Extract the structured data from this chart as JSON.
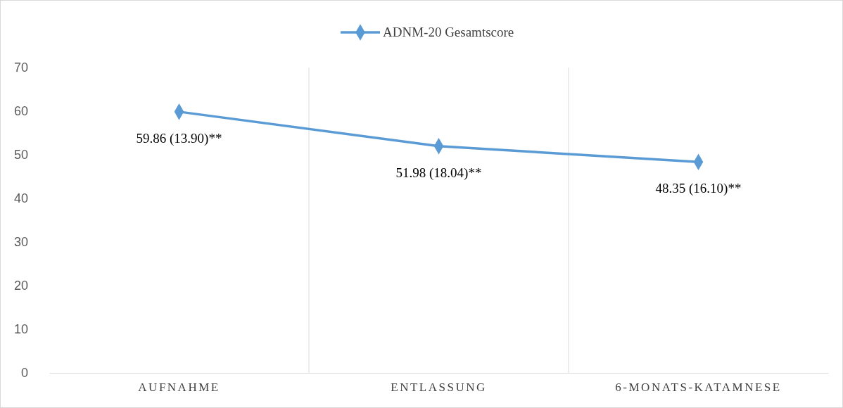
{
  "chart_data": {
    "type": "line",
    "categories": [
      "AUFNAHME",
      "ENTLASSUNG",
      "6-MONATS-KATAMNESE"
    ],
    "series": [
      {
        "name": "ADNM-20 Gesamtscore",
        "color": "#5b9bd5",
        "values": [
          59.86,
          51.98,
          48.35
        ],
        "value_labels": [
          "59.86 (13.90)**",
          "51.98 (18.04)**",
          "48.35 (16.10)**"
        ]
      }
    ],
    "ylim": [
      0,
      70
    ],
    "yticks": [
      0,
      10,
      20,
      30,
      40,
      50,
      60,
      70
    ],
    "grid": "x",
    "legend": "top",
    "marker": "diamond",
    "line_style": "solid"
  }
}
